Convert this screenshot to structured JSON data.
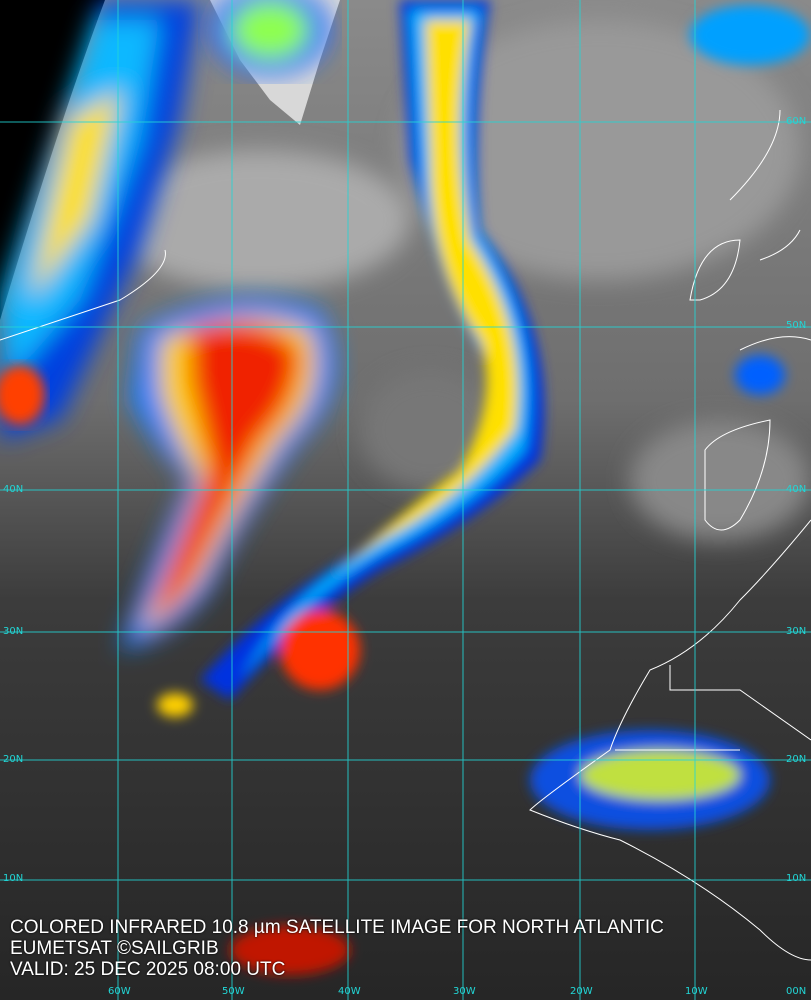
{
  "caption": {
    "line1": "COLORED INFRARED 10.8 µm SATELLITE IMAGE FOR NORTH ATLANTIC",
    "line2": "EUMETSAT ©SAILGRIB",
    "line3": "VALID:  25 DEC 2025 08:00 UTC"
  },
  "latitude_labels": [
    "60N",
    "50N",
    "40N",
    "30N",
    "20N",
    "10N"
  ],
  "longitude_labels": [
    "60W",
    "50W",
    "40W",
    "30W",
    "20W",
    "10W",
    "00N"
  ],
  "colors": {
    "grid": "#22d6d6",
    "coast": "#ffffff",
    "cold_top": "#d40000",
    "mid_top": "#ffe000",
    "low_top": "#00b4ff",
    "edge": "#0018d8"
  }
}
